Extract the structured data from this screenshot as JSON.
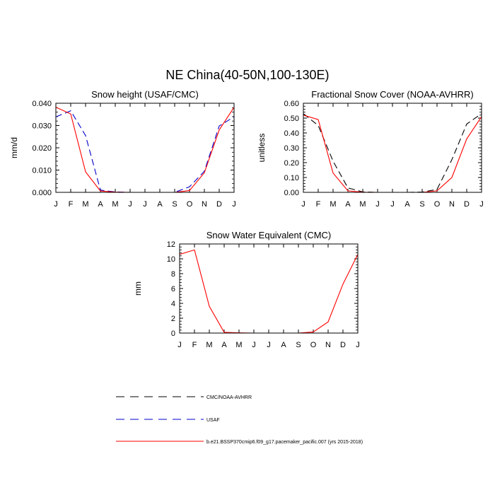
{
  "figure": {
    "title": "NE China(40-50N,100-130E)"
  },
  "legend": {
    "placement": "bottom",
    "entries": [
      {
        "label": "CMC/NOAA-AVHRR",
        "color": "#000000",
        "dash": "dashed"
      },
      {
        "label": "USAF",
        "color": "#0000cc",
        "dash": "dashed"
      },
      {
        "label": "b.e21.BSSP370cmip6.f09_g17.pacemaker_pacific.007 (yrs 2015-2018)",
        "color": "#ff0000",
        "dash": "solid"
      }
    ]
  },
  "chart_data": [
    {
      "type": "line",
      "title": "Snow height (USAF/CMC)",
      "ylabel": "mm/d",
      "xlabel": "",
      "categories": [
        "J",
        "F",
        "M",
        "A",
        "M",
        "J",
        "J",
        "A",
        "S",
        "O",
        "N",
        "D",
        "J"
      ],
      "ylim": [
        0,
        0.04
      ],
      "yticks": [
        "0.000",
        "0.010",
        "0.020",
        "0.030",
        "0.040"
      ],
      "grid": false,
      "series": [
        {
          "name": "USAF",
          "color": "#0000cc",
          "dash": "dashed",
          "values": [
            0.0339,
            0.0366,
            0.0255,
            0.001,
            0.0002,
            0,
            0,
            0,
            0,
            0.0025,
            0.0095,
            0.0298,
            0.0339
          ]
        },
        {
          "name": "b.e21.BSSP370cmip6.f09_g17.pacemaker_pacific.007 (yrs 2015-2018)",
          "color": "#ff0000",
          "dash": "solid",
          "values": [
            0.0382,
            0.0352,
            0.0092,
            0.0006,
            0.0001,
            0,
            0,
            0,
            0,
            0.0008,
            0.0088,
            0.028,
            0.0382
          ]
        }
      ]
    },
    {
      "type": "line",
      "title": "Fractional Snow Cover (NOAA-AVHRR)",
      "ylabel": "unitless",
      "xlabel": "",
      "categories": [
        "J",
        "F",
        "M",
        "A",
        "M",
        "J",
        "J",
        "A",
        "S",
        "O",
        "N",
        "D",
        "J"
      ],
      "ylim": [
        0,
        0.6
      ],
      "yticks": [
        "0.00",
        "0.10",
        "0.20",
        "0.30",
        "0.40",
        "0.50",
        "0.60"
      ],
      "grid": false,
      "series": [
        {
          "name": "CMC/NOAA-AVHRR",
          "color": "#000000",
          "dash": "dashed",
          "values": [
            0.53,
            0.45,
            0.21,
            0.03,
            0.003,
            0,
            0,
            0,
            0.002,
            0.02,
            0.22,
            0.46,
            0.53
          ]
        },
        {
          "name": "b.e21.BSSP370cmip6.f09_g17.pacemaker_pacific.007 (yrs 2015-2018)",
          "color": "#ff0000",
          "dash": "solid",
          "values": [
            0.52,
            0.49,
            0.13,
            0.01,
            0.001,
            0,
            0,
            0,
            0,
            0.01,
            0.1,
            0.36,
            0.51
          ]
        }
      ]
    },
    {
      "type": "line",
      "title": "Snow Water Equivalent (CMC)",
      "ylabel": "mm",
      "xlabel": "",
      "categories": [
        "J",
        "F",
        "M",
        "A",
        "M",
        "J",
        "J",
        "A",
        "S",
        "O",
        "N",
        "D",
        "J"
      ],
      "ylim": [
        0,
        12
      ],
      "yticks": [
        "0",
        "2",
        "4",
        "6",
        "8",
        "10",
        "12"
      ],
      "grid": false,
      "series": [
        {
          "name": "CMC/NOAA-AVHRR",
          "color": "#000000",
          "dash": "dashed",
          "values": [
            0,
            0,
            0,
            0,
            0,
            0,
            0,
            0,
            0,
            0,
            0,
            0,
            0
          ]
        },
        {
          "name": "b.e21.BSSP370cmip6.f09_g17.pacemaker_pacific.007 (yrs 2015-2018)",
          "color": "#ff0000",
          "dash": "solid",
          "values": [
            10.6,
            11.2,
            3.6,
            0.1,
            0.03,
            0,
            0,
            0,
            0,
            0.15,
            1.5,
            6.6,
            10.6
          ]
        }
      ]
    }
  ]
}
